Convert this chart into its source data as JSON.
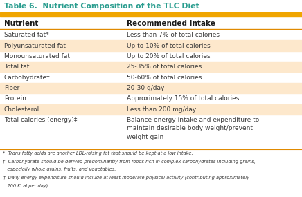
{
  "title": "Table 6.  Nutrient Composition of the TLC Diet",
  "title_color": "#2a9d8f",
  "title_bg": "#ffffff",
  "orange_bar_color": "#f0a500",
  "header_col1": "Nutrient",
  "header_col2": "Recommended Intake",
  "rows": [
    {
      "nutrient": "Saturated fat*",
      "intake": "Less than 7% of total calories",
      "highlight": false
    },
    {
      "nutrient": "Polyunsaturated fat",
      "intake": "Up to 10% of total calories",
      "highlight": true
    },
    {
      "nutrient": "Monounsaturated fat",
      "intake": "Up to 20% of total calories",
      "highlight": false
    },
    {
      "nutrient": "Total fat",
      "intake": "25-35% of total calories",
      "highlight": true
    },
    {
      "nutrient": "Carbohydrate†",
      "intake": "50-60% of total calories",
      "highlight": false
    },
    {
      "nutrient": "Fiber",
      "intake": "20-30 g/day",
      "highlight": true
    },
    {
      "nutrient": "Protein",
      "intake": "Approximately 15% of total calories",
      "highlight": false
    },
    {
      "nutrient": "Cholesterol",
      "intake": "Less than 200 mg/day",
      "highlight": true
    },
    {
      "nutrient": "Total calories (energy)‡",
      "intake": "Balance energy intake and expenditure to\nmaintain desirable body weight/prevent\nweight gain",
      "highlight": false
    }
  ],
  "footnote_lines": [
    "*  Trans fatty acids are another LDL-raising fat that should be kept at a low intake.",
    "†  Carbohydrate should be derived predominantly from foods rich in complex carbohydrates including grains,",
    "   especially whole grains, fruits, and vegetables.",
    "‡  Daily energy expenditure should include at least moderate physical activity (contributing approximately",
    "   200 Kcal per day)."
  ],
  "highlight_color": "#fde8cc",
  "orange_line_color": "#e08a00",
  "text_color": "#3a3a3a",
  "bg_color": "#ffffff",
  "col_split": 0.41,
  "fig_width": 4.36,
  "fig_height": 2.85,
  "dpi": 100
}
